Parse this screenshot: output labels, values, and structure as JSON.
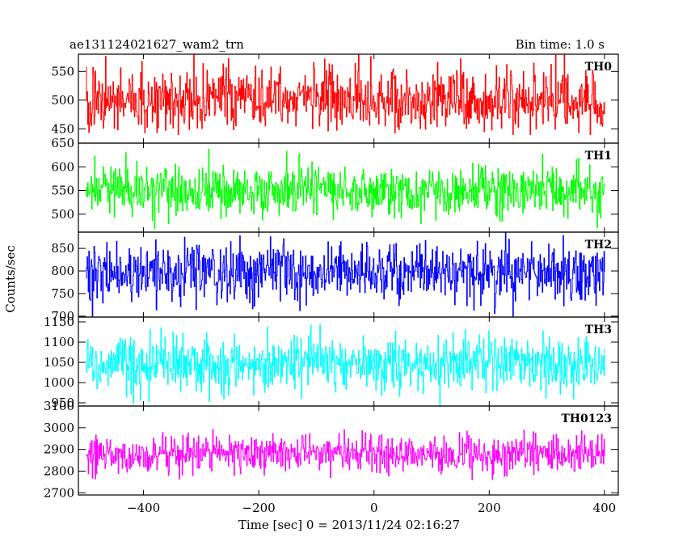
{
  "header": {
    "left": "ae131124021627_wam2_trn",
    "right": "Bin time: 1.0 s"
  },
  "chart_data": {
    "type": "line",
    "xlabel": "Time [sec] 0 = 2013/11/24 02:16:27",
    "ylabel": "Counts/sec",
    "xlim": [
      -513,
      424
    ],
    "x_ticks": [
      -400,
      -200,
      0,
      200,
      400
    ],
    "x_tick_labels": [
      "−400",
      "−200",
      "0",
      "200",
      "400"
    ],
    "bin_time_s": 1.0,
    "x_start": -500,
    "x_end": 400,
    "grid": false,
    "panels": [
      {
        "name": "TH0",
        "color": "#ff0000",
        "ylim": [
          425,
          580
        ],
        "y_ticks": [
          450,
          500,
          550
        ],
        "mean": 500,
        "spread": 27,
        "min": 440,
        "max": 580
      },
      {
        "name": "TH1",
        "color": "#00ff00",
        "ylim": [
          462,
          650
        ],
        "y_ticks": [
          500,
          550,
          600,
          650
        ],
        "mean": 550,
        "spread": 26,
        "min": 462,
        "max": 640
      },
      {
        "name": "TH2",
        "color": "#0000ff",
        "ylim": [
          698,
          886
        ],
        "y_ticks": [
          700,
          750,
          800,
          850
        ],
        "mean": 795,
        "spread": 33,
        "min": 700,
        "max": 886
      },
      {
        "name": "TH3",
        "color": "#00ffff",
        "ylim": [
          942,
          1162
        ],
        "y_ticks": [
          950,
          1000,
          1050,
          1100,
          1150
        ],
        "mean": 1045,
        "spread": 33,
        "min": 942,
        "max": 1162
      },
      {
        "name": "TH0123",
        "color": "#ff00ff",
        "ylim": [
          2690,
          3100
        ],
        "y_ticks": [
          2700,
          2800,
          2900,
          3000,
          3100
        ],
        "mean": 2880,
        "spread": 45,
        "min": 2690,
        "max": 3100
      }
    ]
  }
}
